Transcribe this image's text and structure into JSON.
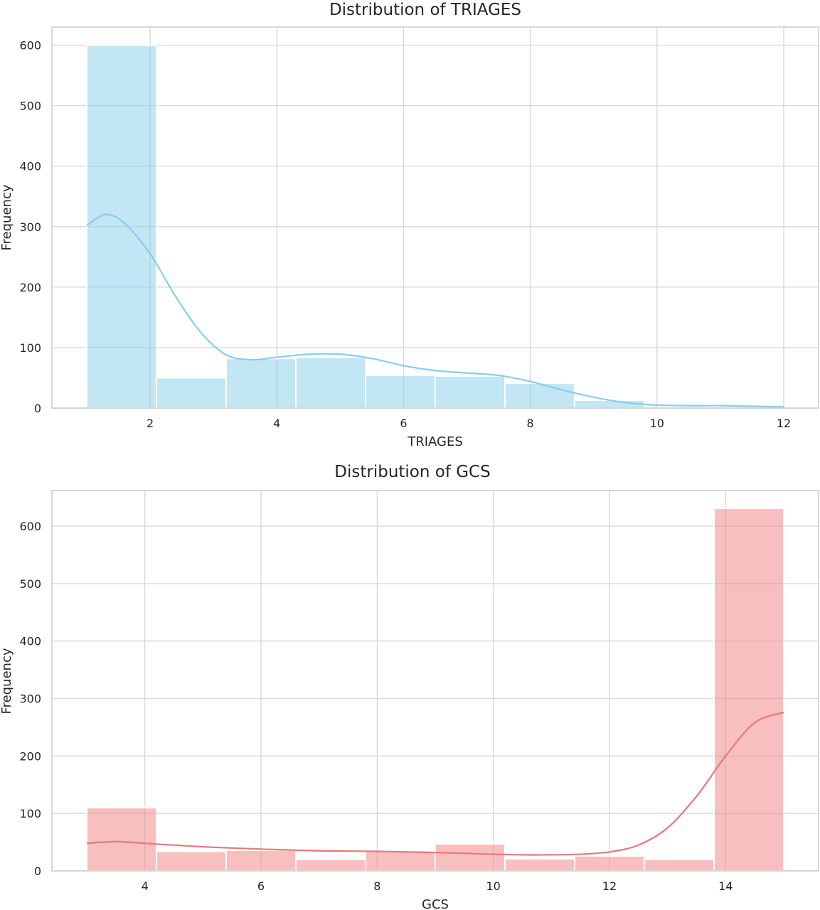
{
  "chart_data": [
    {
      "type": "bar",
      "title": "Distribution of TRIAGES",
      "xlabel": "TRIAGES",
      "ylabel": "Frequency",
      "xlim": [
        0.45,
        12.55
      ],
      "ylim": [
        0,
        630
      ],
      "xticks": [
        2,
        4,
        6,
        8,
        10,
        12
      ],
      "yticks": [
        0,
        100,
        200,
        300,
        400,
        500,
        600
      ],
      "bin_edges": [
        1,
        2.1,
        3.2,
        4.3,
        5.4,
        6.5,
        7.6,
        8.7,
        9.8,
        10.9,
        12
      ],
      "values": [
        600,
        50,
        82,
        84,
        54,
        53,
        41,
        13,
        0,
        0
      ],
      "kde": {
        "x": [
          1,
          1.3,
          1.6,
          2,
          2.4,
          2.8,
          3.2,
          3.6,
          4.0,
          4.5,
          5.0,
          5.5,
          6.0,
          6.5,
          7.0,
          7.5,
          8.0,
          8.5,
          9.0,
          9.5,
          10.0,
          10.5,
          11.0,
          11.5,
          12.0
        ],
        "y": [
          302,
          320,
          305,
          255,
          185,
          125,
          88,
          80,
          84,
          89,
          89,
          82,
          70,
          62,
          58,
          54,
          44,
          30,
          18,
          9,
          5,
          4,
          4,
          3,
          2
        ]
      },
      "grid": true,
      "colors": {
        "bar": "#87ceeb",
        "kde": "#87ceeb"
      }
    },
    {
      "type": "bar",
      "title": "Distribution of GCS",
      "xlabel": "GCS",
      "ylabel": "Frequency",
      "xlim": [
        2.4,
        15.6
      ],
      "ylim": [
        0,
        662
      ],
      "xticks": [
        4,
        6,
        8,
        10,
        12,
        14
      ],
      "yticks": [
        0,
        100,
        200,
        300,
        400,
        500,
        600
      ],
      "bin_edges": [
        3,
        4.2,
        5.4,
        6.6,
        7.8,
        9,
        10.2,
        11.4,
        12.6,
        13.8,
        15
      ],
      "values": [
        110,
        34,
        36,
        20,
        34,
        47,
        21,
        26,
        20,
        631
      ],
      "kde": {
        "x": [
          3,
          3.5,
          4,
          5,
          6,
          7,
          8,
          9,
          10,
          10.5,
          11,
          11.5,
          12,
          12.5,
          13,
          13.5,
          14,
          14.5,
          15
        ],
        "y": [
          48,
          51,
          48,
          42,
          38,
          35,
          34,
          32,
          29,
          28,
          28,
          29,
          33,
          45,
          75,
          130,
          200,
          258,
          276
        ]
      },
      "grid": true,
      "colors": {
        "bar": "#f08080",
        "kde": "#e8787a"
      }
    }
  ]
}
